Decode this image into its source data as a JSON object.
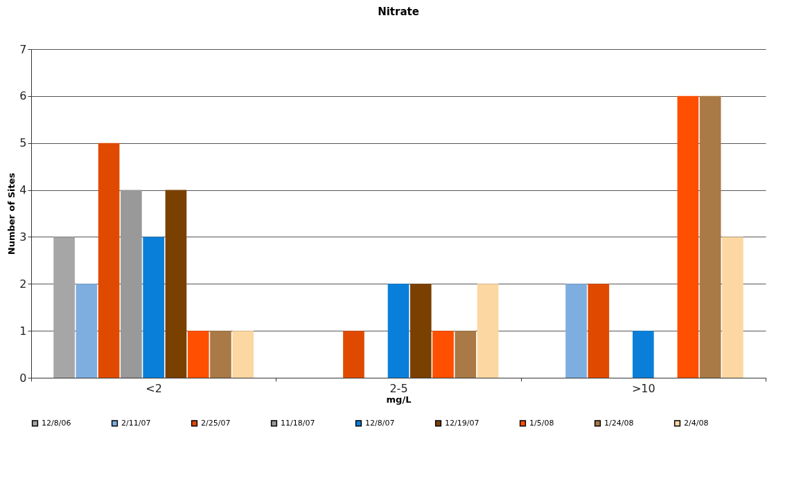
{
  "chart_data": {
    "type": "bar",
    "title": "Nitrate",
    "xlabel": "mg/L",
    "ylabel": "Number of Sites",
    "categories": [
      "<2",
      "2-5",
      ">10"
    ],
    "series": [
      {
        "name": "12/8/06",
        "color": "#a6a6a6",
        "values": [
          3,
          0,
          0
        ]
      },
      {
        "name": "2/11/07",
        "color": "#7eaedf",
        "values": [
          2,
          0,
          2
        ]
      },
      {
        "name": "2/25/07",
        "color": "#e04a00",
        "values": [
          5,
          1,
          2
        ]
      },
      {
        "name": "11/18/07",
        "color": "#999999",
        "values": [
          4,
          0,
          0
        ]
      },
      {
        "name": "12/8/07",
        "color": "#0a7fd9",
        "values": [
          3,
          2,
          1
        ]
      },
      {
        "name": "12/19/07",
        "color": "#7a4000",
        "values": [
          4,
          2,
          0
        ]
      },
      {
        "name": "1/5/08",
        "color": "#ff4f00",
        "values": [
          1,
          1,
          6
        ]
      },
      {
        "name": "1/24/08",
        "color": "#a97a45",
        "values": [
          1,
          1,
          6
        ]
      },
      {
        "name": "2/4/08",
        "color": "#fcd7a1",
        "values": [
          1,
          2,
          3
        ]
      }
    ],
    "ylim": [
      0,
      7
    ],
    "yticks": [
      0,
      1,
      2,
      3,
      4,
      5,
      6,
      7
    ],
    "grid": "y",
    "legend": "bottom"
  }
}
